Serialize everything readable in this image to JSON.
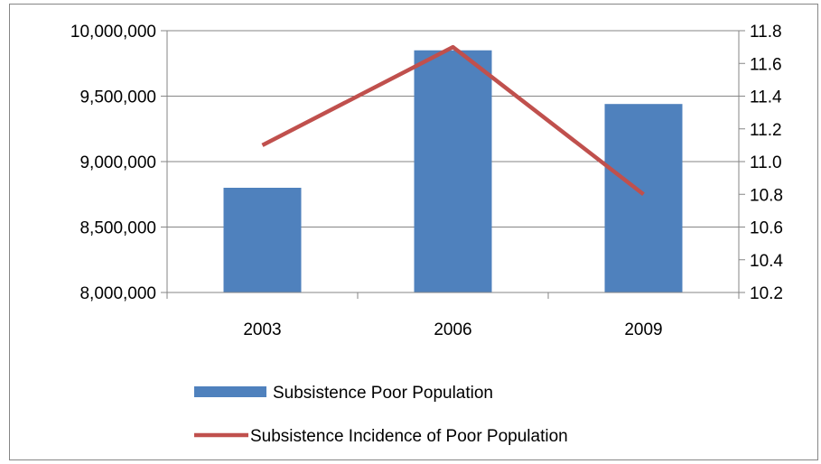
{
  "chart_data": {
    "type": "bar",
    "categories": [
      "2003",
      "2006",
      "2009"
    ],
    "series": [
      {
        "name": "Subsistence Poor Population",
        "type": "bar",
        "axis": "left",
        "color": "#4F81BD",
        "values": [
          8800000,
          9850000,
          9440000
        ]
      },
      {
        "name": "Subsistence Incidence of Poor Population",
        "type": "line",
        "axis": "right",
        "color": "#C0504D",
        "values": [
          11.1,
          11.7,
          10.8
        ]
      }
    ],
    "left_axis": {
      "ylim": [
        8000000,
        10000000
      ],
      "ticks": [
        8000000,
        8500000,
        9000000,
        9500000,
        10000000
      ],
      "tick_labels": [
        "8,000,000",
        "8,500,000",
        "9,000,000",
        "9,500,000",
        "10,000,000"
      ]
    },
    "right_axis": {
      "ylim": [
        10.2,
        11.8
      ],
      "ticks": [
        10.2,
        10.4,
        10.6,
        10.8,
        11.0,
        11.2,
        11.4,
        11.6,
        11.8
      ],
      "tick_labels": [
        "10.2",
        "10.4",
        "10.6",
        "10.8",
        "11.0",
        "11.2",
        "11.4",
        "11.6",
        "11.8"
      ]
    },
    "grid": "horizontal",
    "legend_position": "bottom"
  }
}
